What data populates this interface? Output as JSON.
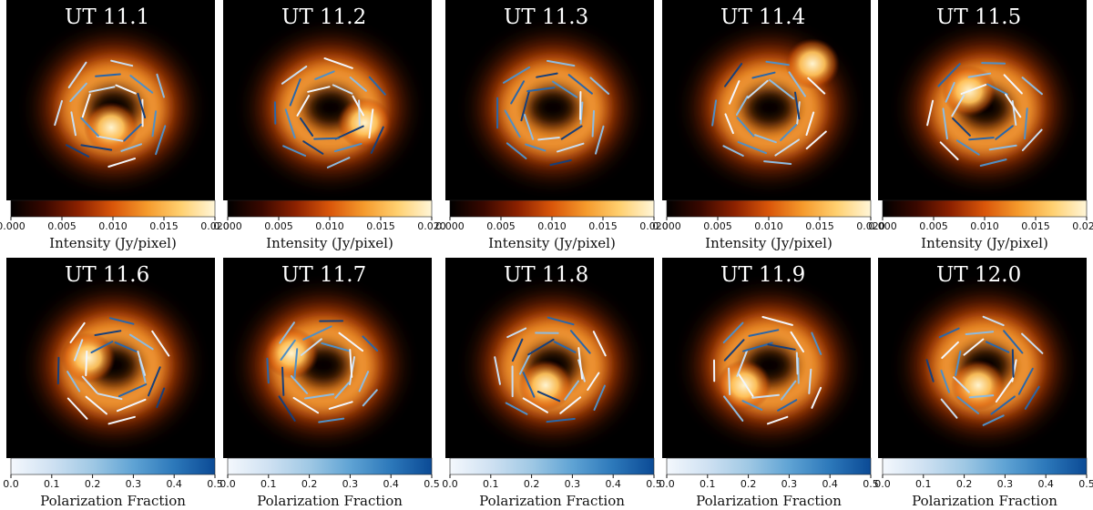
{
  "chart_data": {
    "type": "image_grid",
    "description_free": true,
    "rows": [
      {
        "panels": [
          "UT 11.1",
          "UT 11.2",
          "UT 11.3",
          "UT 11.4",
          "UT 11.5"
        ],
        "colorbar": {
          "label": "Intensity (Jy/pixel)",
          "ticks": [
            "0.000",
            "0.005",
            "0.010",
            "0.015",
            "0.020"
          ],
          "range": [
            0.0,
            0.02
          ],
          "colormap": [
            "#000000",
            "#3a0800",
            "#8c2100",
            "#d9560a",
            "#f59a2c",
            "#ffd070",
            "#fff6d8"
          ]
        }
      },
      {
        "panels": [
          "UT 11.6",
          "UT 11.7",
          "UT 11.8",
          "UT 11.9",
          "UT 12.0"
        ],
        "colorbar": {
          "label": "Polarization Fraction",
          "ticks": [
            "0.0",
            "0.1",
            "0.2",
            "0.3",
            "0.4",
            "0.5"
          ],
          "range": [
            0.0,
            0.5
          ],
          "colormap": [
            "#f4f8fd",
            "#cfe1f2",
            "#9fc8e4",
            "#5fa3d4",
            "#2c78ba",
            "#0b4a95"
          ]
        }
      }
    ]
  }
}
